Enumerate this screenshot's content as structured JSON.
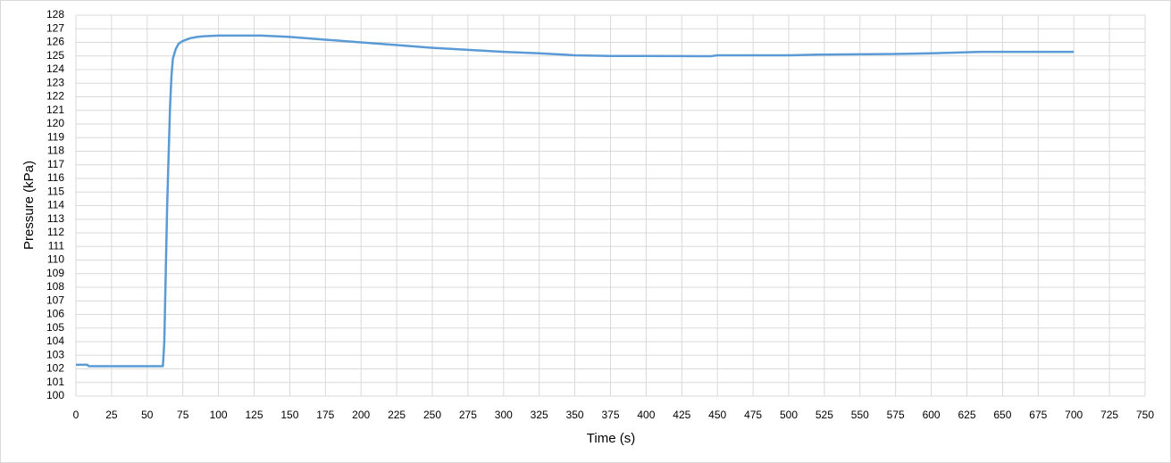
{
  "chart_data": {
    "type": "line",
    "x_label": "Time (s)",
    "y_label": "Pressure (kPa)",
    "x": [
      0,
      8,
      9,
      61,
      62,
      64,
      66,
      67,
      68,
      70,
      72,
      75,
      80,
      85,
      90,
      100,
      130,
      150,
      175,
      200,
      225,
      250,
      275,
      300,
      325,
      350,
      375,
      400,
      445,
      450,
      500,
      520,
      575,
      600,
      635,
      700
    ],
    "series": [
      {
        "name": "Pressure",
        "color": "#5b9bd5",
        "values": [
          102.3,
          102.3,
          102.2,
          102.2,
          104,
          114,
          121.2,
          123.5,
          124.8,
          125.5,
          125.9,
          126.1,
          126.3,
          126.4,
          126.45,
          126.5,
          126.5,
          126.4,
          126.2,
          126.0,
          125.8,
          125.6,
          125.45,
          125.3,
          125.2,
          125.05,
          125.0,
          125.0,
          124.98,
          125.05,
          125.05,
          125.1,
          125.15,
          125.2,
          125.3,
          125.3
        ]
      }
    ],
    "xlim": [
      0,
      750
    ],
    "xticks": [
      0,
      25,
      50,
      75,
      100,
      125,
      150,
      175,
      200,
      225,
      250,
      275,
      300,
      325,
      350,
      375,
      400,
      425,
      450,
      475,
      500,
      525,
      550,
      575,
      600,
      625,
      650,
      675,
      700,
      725,
      750
    ],
    "ylim": [
      100,
      128
    ],
    "yticks": [
      100,
      101,
      102,
      103,
      104,
      105,
      106,
      107,
      108,
      109,
      110,
      111,
      112,
      113,
      114,
      115,
      116,
      117,
      118,
      119,
      120,
      121,
      122,
      123,
      124,
      125,
      126,
      127,
      128
    ],
    "grid": true
  }
}
